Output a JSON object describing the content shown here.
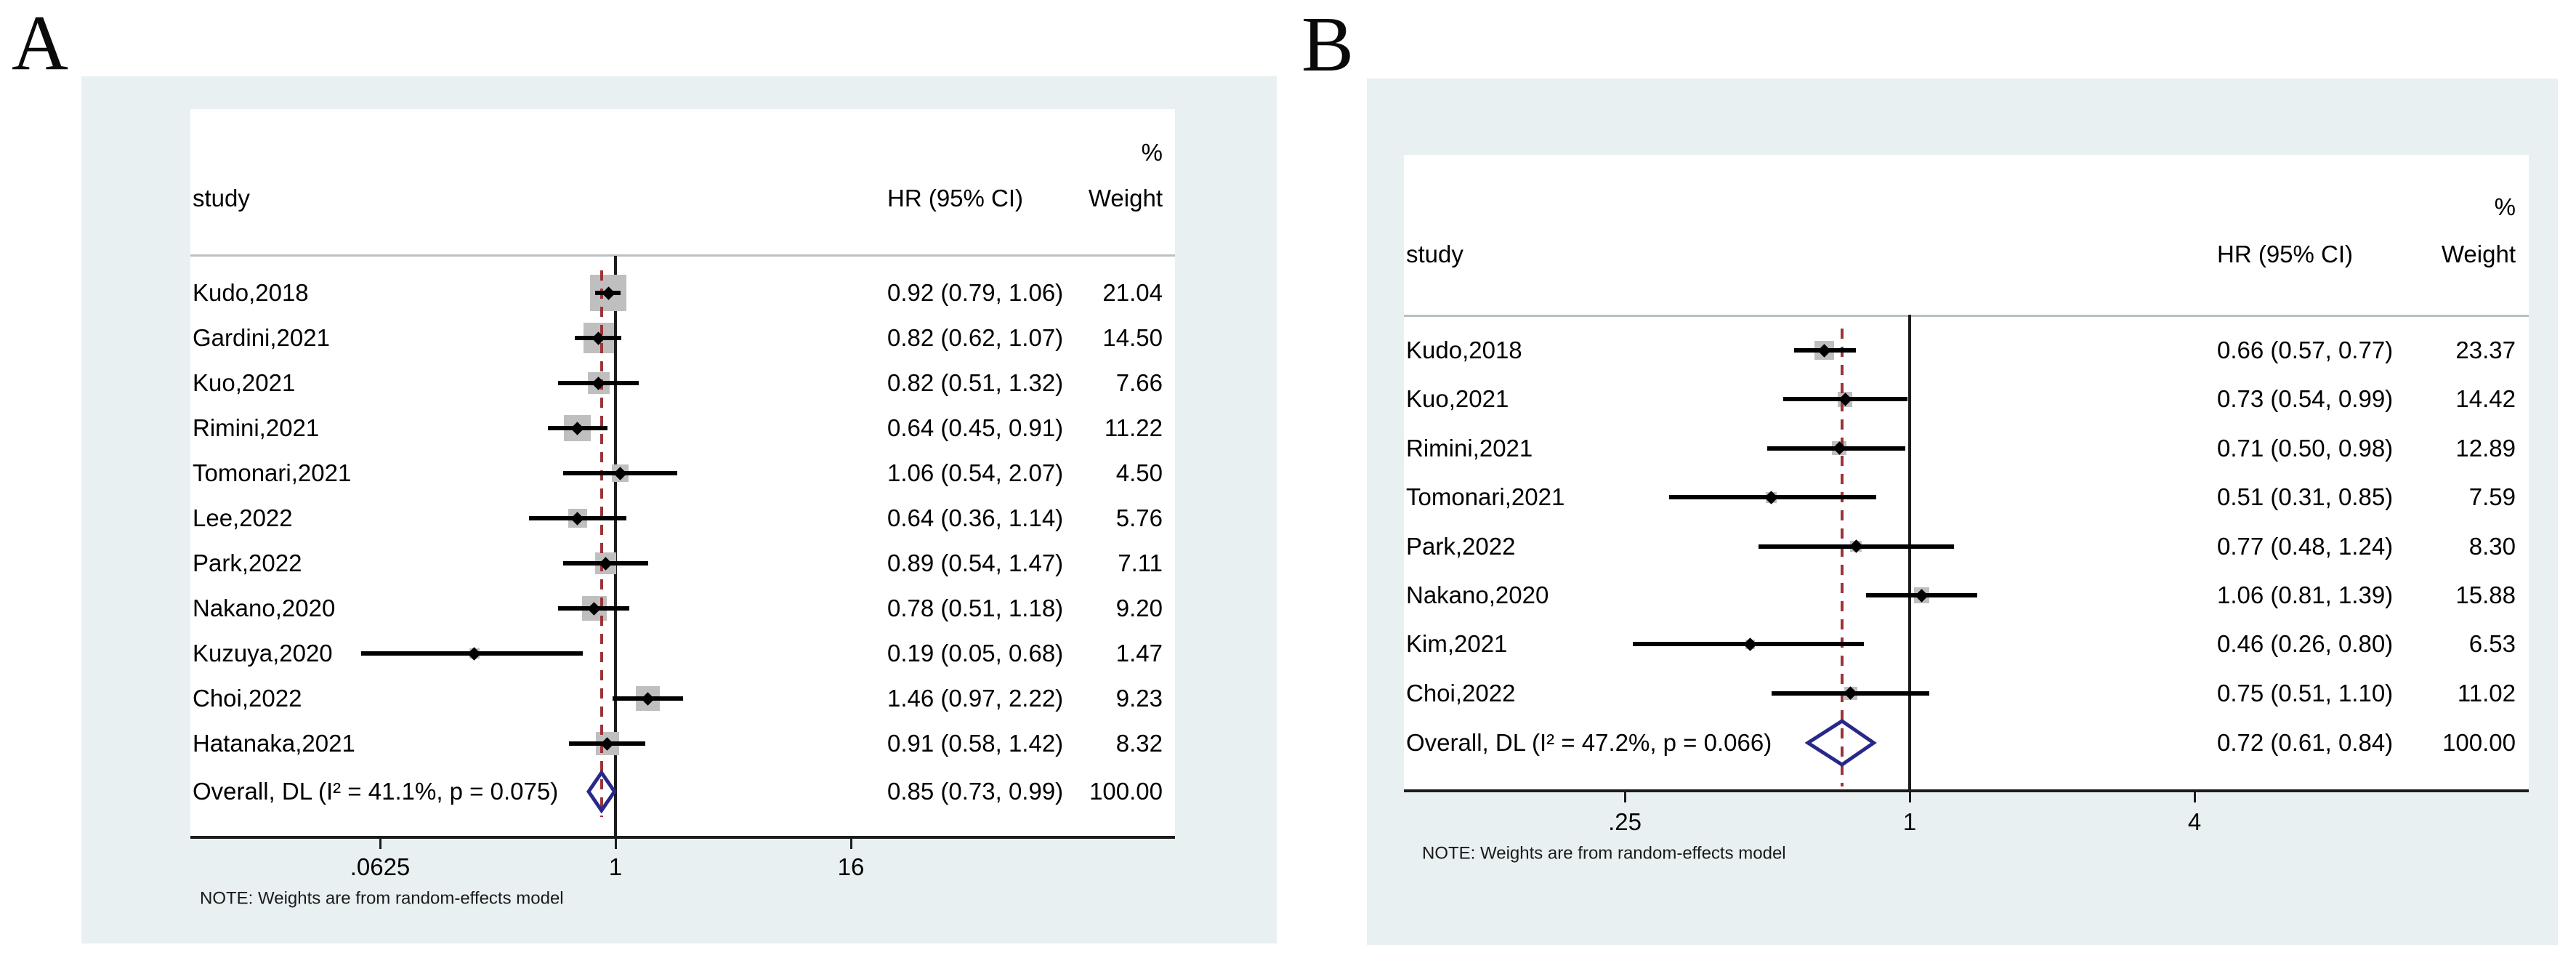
{
  "colors": {
    "panel_background": "#e9f0f2",
    "plot_background": "#ffffff",
    "weight_box": "#bfbfbf",
    "ci_line": "#000000",
    "null_line": "#1c1c1c",
    "overall_dash_line": "#9b3438",
    "diamond_outline": "#28288a",
    "header_rule": "#b9c0c2"
  },
  "chart_data": [
    {
      "type": "forest",
      "panel_label": "A",
      "xscale": "log",
      "columns": {
        "percent": "%",
        "study": "study",
        "hr": "HR (95% CI)",
        "weight": "Weight"
      },
      "note": "NOTE: Weights are from random-effects model",
      "axis_ticks": [
        {
          "value": 0.0625,
          "label": ".0625"
        },
        {
          "value": 1,
          "label": "1"
        },
        {
          "value": 16,
          "label": "16"
        }
      ],
      "studies": [
        {
          "label": "Kudo,2018",
          "hr": 0.92,
          "lo": 0.79,
          "hi": 1.06,
          "hr_text": "0.92 (0.79, 1.06)",
          "weight": 21.04,
          "weight_text": "21.04"
        },
        {
          "label": "Gardini,2021",
          "hr": 0.82,
          "lo": 0.62,
          "hi": 1.07,
          "hr_text": "0.82 (0.62, 1.07)",
          "weight": 14.5,
          "weight_text": "14.50"
        },
        {
          "label": "Kuo,2021",
          "hr": 0.82,
          "lo": 0.51,
          "hi": 1.32,
          "hr_text": "0.82 (0.51, 1.32)",
          "weight": 7.66,
          "weight_text": "7.66"
        },
        {
          "label": "Rimini,2021",
          "hr": 0.64,
          "lo": 0.45,
          "hi": 0.91,
          "hr_text": "0.64 (0.45, 0.91)",
          "weight": 11.22,
          "weight_text": "11.22"
        },
        {
          "label": "Tomonari,2021",
          "hr": 1.06,
          "lo": 0.54,
          "hi": 2.07,
          "hr_text": "1.06 (0.54, 2.07)",
          "weight": 4.5,
          "weight_text": "4.50"
        },
        {
          "label": "Lee,2022",
          "hr": 0.64,
          "lo": 0.36,
          "hi": 1.14,
          "hr_text": "0.64 (0.36, 1.14)",
          "weight": 5.76,
          "weight_text": "5.76"
        },
        {
          "label": "Park,2022",
          "hr": 0.89,
          "lo": 0.54,
          "hi": 1.47,
          "hr_text": "0.89 (0.54, 1.47)",
          "weight": 7.11,
          "weight_text": "7.11"
        },
        {
          "label": "Nakano,2020",
          "hr": 0.78,
          "lo": 0.51,
          "hi": 1.18,
          "hr_text": "0.78 (0.51, 1.18)",
          "weight": 9.2,
          "weight_text": "9.20"
        },
        {
          "label": "Kuzuya,2020",
          "hr": 0.19,
          "lo": 0.05,
          "hi": 0.68,
          "hr_text": "0.19 (0.05, 0.68)",
          "weight": 1.47,
          "weight_text": "1.47"
        },
        {
          "label": "Choi,2022",
          "hr": 1.46,
          "lo": 0.97,
          "hi": 2.22,
          "hr_text": "1.46 (0.97, 2.22)",
          "weight": 9.23,
          "weight_text": "9.23"
        },
        {
          "label": "Hatanaka,2021",
          "hr": 0.91,
          "lo": 0.58,
          "hi": 1.42,
          "hr_text": "0.91 (0.58, 1.42)",
          "weight": 8.32,
          "weight_text": "8.32"
        }
      ],
      "overall": {
        "label": "Overall, DL (I² = 41.1%, p = 0.075)",
        "hr": 0.85,
        "lo": 0.73,
        "hi": 0.99,
        "hr_text": "0.85 (0.73, 0.99)",
        "weight_text": "100.00"
      }
    },
    {
      "type": "forest",
      "panel_label": "B",
      "xscale": "log",
      "columns": {
        "percent": "%",
        "study": "study",
        "hr": "HR (95% CI)",
        "weight": "Weight"
      },
      "note": "NOTE: Weights are from random-effects model",
      "axis_ticks": [
        {
          "value": 0.25,
          "label": ".25"
        },
        {
          "value": 1,
          "label": "1"
        },
        {
          "value": 4,
          "label": "4"
        }
      ],
      "studies": [
        {
          "label": "Kudo,2018",
          "hr": 0.66,
          "lo": 0.57,
          "hi": 0.77,
          "hr_text": "0.66 (0.57, 0.77)",
          "weight": 23.37,
          "weight_text": "23.37"
        },
        {
          "label": "Kuo,2021",
          "hr": 0.73,
          "lo": 0.54,
          "hi": 0.99,
          "hr_text": "0.73 (0.54, 0.99)",
          "weight": 14.42,
          "weight_text": "14.42"
        },
        {
          "label": "Rimini,2021",
          "hr": 0.71,
          "lo": 0.5,
          "hi": 0.98,
          "hr_text": "0.71 (0.50, 0.98)",
          "weight": 12.89,
          "weight_text": "12.89"
        },
        {
          "label": "Tomonari,2021",
          "hr": 0.51,
          "lo": 0.31,
          "hi": 0.85,
          "hr_text": "0.51 (0.31, 0.85)",
          "weight": 7.59,
          "weight_text": "7.59"
        },
        {
          "label": "Park,2022",
          "hr": 0.77,
          "lo": 0.48,
          "hi": 1.24,
          "hr_text": "0.77 (0.48, 1.24)",
          "weight": 8.3,
          "weight_text": "8.30"
        },
        {
          "label": "Nakano,2020",
          "hr": 1.06,
          "lo": 0.81,
          "hi": 1.39,
          "hr_text": "1.06 (0.81, 1.39)",
          "weight": 15.88,
          "weight_text": "15.88"
        },
        {
          "label": "Kim,2021",
          "hr": 0.46,
          "lo": 0.26,
          "hi": 0.8,
          "hr_text": "0.46 (0.26, 0.80)",
          "weight": 6.53,
          "weight_text": "6.53"
        },
        {
          "label": "Choi,2022",
          "hr": 0.75,
          "lo": 0.51,
          "hi": 1.1,
          "hr_text": "0.75 (0.51, 1.10)",
          "weight": 11.02,
          "weight_text": "11.02"
        }
      ],
      "overall": {
        "label": "Overall, DL (I² = 47.2%, p = 0.066)",
        "hr": 0.72,
        "lo": 0.61,
        "hi": 0.84,
        "hr_text": "0.72 (0.61, 0.84)",
        "weight_text": "100.00"
      }
    }
  ]
}
